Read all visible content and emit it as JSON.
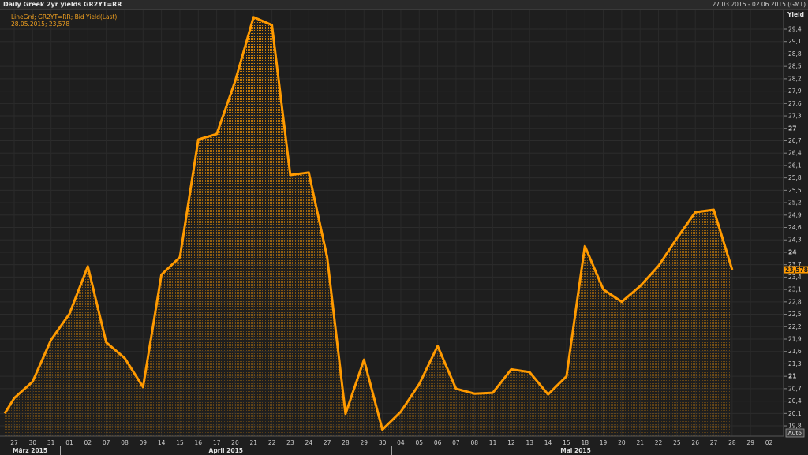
{
  "header": {
    "title": "Daily Greek 2yr yields GR2YT=RR",
    "date_range": "27.03.2015 - 02.06.2015 (GMT)"
  },
  "legend": {
    "line1": "LineGrd; GR2YT=RR; Bid Yield(Last)",
    "line2": "28.05.2015; 23,578"
  },
  "axis": {
    "y_title": "Yield",
    "auto_button": "Auto",
    "last_value_label": "23,578"
  },
  "colors": {
    "line": "#ff9a00",
    "background": "#1e1e1e",
    "grid": "#2c2c2c"
  },
  "chart_data": {
    "type": "area",
    "title": "Daily Greek 2yr yields GR2YT=RR",
    "ylabel": "Yield",
    "ylim": [
      19.6,
      29.8
    ],
    "y_ticks": [
      "29,4",
      "29,1",
      "28,8",
      "28,5",
      "28,2",
      "27,9",
      "27,6",
      "27,3",
      "27",
      "26,7",
      "26,4",
      "26,1",
      "25,8",
      "25,5",
      "25,2",
      "24,9",
      "24,6",
      "24,3",
      "24",
      "23,7",
      "23,4",
      "23,1",
      "22,8",
      "22,5",
      "22,2",
      "21,9",
      "21,6",
      "21,3",
      "21",
      "20,7",
      "20,4",
      "20,1",
      "19,8"
    ],
    "y_tick_values": [
      29.4,
      29.1,
      28.8,
      28.5,
      28.2,
      27.9,
      27.6,
      27.3,
      27,
      26.7,
      26.4,
      26.1,
      25.8,
      25.5,
      25.2,
      24.9,
      24.6,
      24.3,
      24,
      23.7,
      23.4,
      23.1,
      22.8,
      22.5,
      22.2,
      21.9,
      21.6,
      21.3,
      21,
      20.7,
      20.4,
      20.1,
      19.8
    ],
    "bold_y_ticks": [
      "27",
      "24",
      "21"
    ],
    "x_tick_labels": [
      "27",
      "30",
      "31",
      "01",
      "02",
      "07",
      "08",
      "09",
      "14",
      "15",
      "16",
      "17",
      "20",
      "21",
      "22",
      "23",
      "24",
      "27",
      "28",
      "29",
      "30",
      "04",
      "05",
      "06",
      "07",
      "08",
      "11",
      "12",
      "13",
      "14",
      "15",
      "18",
      "19",
      "20",
      "21",
      "22",
      "25",
      "26",
      "27",
      "28",
      "29",
      "02"
    ],
    "month_labels": [
      {
        "label": "März 2015",
        "from": 0,
        "to": 2
      },
      {
        "label": "April 2015",
        "from": 3,
        "to": 20
      },
      {
        "label": "Mai 2015",
        "from": 21,
        "to": 40
      }
    ],
    "values": [
      20.47,
      20.87,
      21.88,
      22.51,
      23.66,
      21.82,
      21.44,
      20.74,
      23.46,
      23.88,
      26.73,
      26.86,
      28.14,
      29.69,
      29.5,
      25.87,
      25.93,
      23.88,
      20.09,
      21.4,
      19.71,
      20.14,
      20.81,
      21.73,
      20.7,
      20.58,
      20.6,
      21.17,
      21.1,
      20.56,
      21.0,
      24.15,
      23.1,
      22.8,
      23.18,
      23.67,
      24.34,
      24.97,
      25.03,
      23.578
    ],
    "last": {
      "date": "28.05.2015",
      "value": 23.578
    },
    "grid": true
  }
}
